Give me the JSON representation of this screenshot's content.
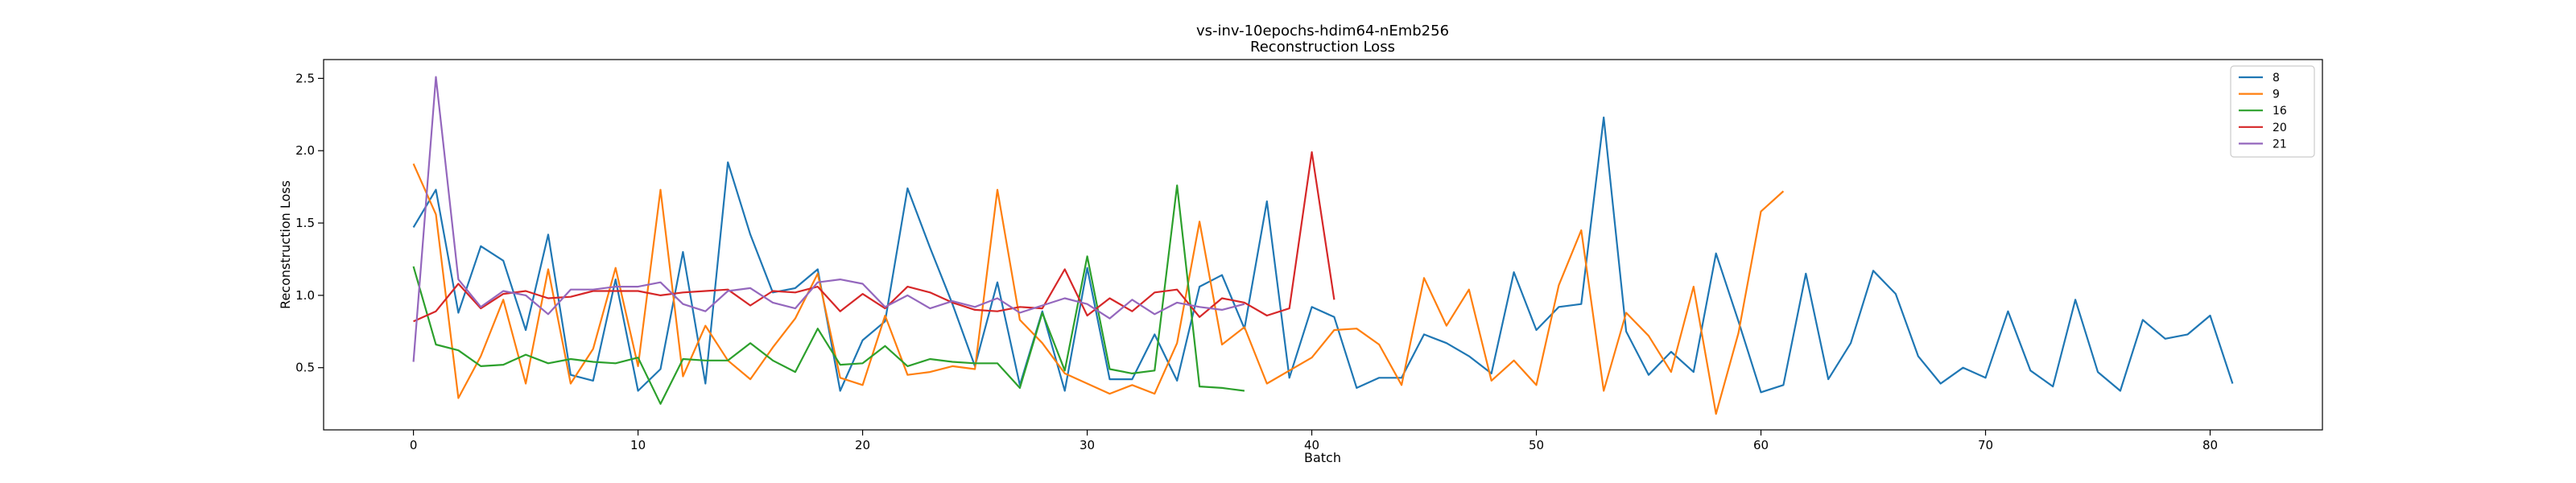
{
  "chart_data": {
    "type": "line",
    "title": "vs-inv-10epochs-hdim64-nEmb256",
    "subtitle": "Reconstruction Loss",
    "xlabel": "Batch",
    "ylabel": "Reconstruction Loss",
    "xlim": [
      -4,
      85
    ],
    "ylim": [
      0.07,
      2.63
    ],
    "xticks": [
      "0",
      "10",
      "20",
      "30",
      "40",
      "50",
      "60",
      "70",
      "80"
    ],
    "yticks": [
      "0.5",
      "1.0",
      "1.5",
      "2.0",
      "2.5"
    ],
    "grid": false,
    "legend_position": "top-right",
    "series": [
      {
        "name": "8",
        "color": "#1f77b4",
        "values": [
          1.47,
          1.73,
          0.88,
          1.34,
          1.24,
          0.76,
          1.42,
          0.45,
          0.41,
          1.11,
          0.34,
          0.49,
          1.3,
          0.39,
          1.92,
          1.42,
          1.02,
          1.05,
          1.18,
          0.34,
          0.69,
          0.82,
          1.74,
          1.33,
          0.94,
          0.51,
          1.09,
          0.38,
          0.89,
          0.34,
          1.19,
          0.42,
          0.42,
          0.73,
          0.41,
          1.06,
          1.14,
          0.77,
          1.65,
          0.43,
          0.92,
          0.85,
          0.36,
          0.43,
          0.43,
          0.73,
          0.67,
          0.58,
          0.46,
          1.16,
          0.76,
          0.92,
          0.94,
          2.23,
          0.75,
          0.45,
          0.61,
          0.47,
          1.29,
          0.82,
          0.33,
          0.38,
          1.15,
          0.42,
          0.67,
          1.17,
          1.01,
          0.58,
          0.39,
          0.5,
          0.43,
          0.89,
          0.48,
          0.37,
          0.97,
          0.47,
          0.34,
          0.83,
          0.7,
          0.73,
          0.86,
          0.39
        ]
      },
      {
        "name": "9",
        "color": "#ff7f0e",
        "values": [
          1.91,
          1.56,
          0.29,
          0.58,
          0.97,
          0.39,
          1.18,
          0.39,
          0.63,
          1.19,
          0.51,
          1.73,
          0.44,
          0.79,
          0.55,
          0.42,
          0.64,
          0.84,
          1.15,
          0.43,
          0.38,
          0.86,
          0.45,
          0.47,
          0.51,
          0.49,
          1.73,
          0.83,
          0.67,
          0.46,
          0.39,
          0.32,
          0.38,
          0.32,
          0.67,
          1.51,
          0.66,
          0.78,
          0.39,
          0.48,
          0.57,
          0.76,
          0.77,
          0.66,
          0.38,
          1.12,
          0.79,
          1.04,
          0.41,
          0.55,
          0.38,
          1.07,
          1.45,
          0.34,
          0.88,
          0.72,
          0.47,
          1.06,
          0.18,
          0.74,
          1.58,
          1.72
        ]
      },
      {
        "name": "16",
        "color": "#2ca02c",
        "values": [
          1.2,
          0.66,
          0.62,
          0.51,
          0.52,
          0.59,
          0.53,
          0.56,
          0.54,
          0.53,
          0.57,
          0.25,
          0.56,
          0.55,
          0.55,
          0.67,
          0.55,
          0.47,
          0.77,
          0.52,
          0.53,
          0.65,
          0.51,
          0.56,
          0.54,
          0.53,
          0.53,
          0.36,
          0.88,
          0.48,
          1.27,
          0.49,
          0.46,
          0.48,
          1.76,
          0.37,
          0.36,
          0.34
        ]
      },
      {
        "name": "20",
        "color": "#d62728",
        "values": [
          0.82,
          0.89,
          1.08,
          0.91,
          1.01,
          1.03,
          0.98,
          0.99,
          1.03,
          1.03,
          1.03,
          1.0,
          1.02,
          1.03,
          1.04,
          0.93,
          1.03,
          1.02,
          1.06,
          0.89,
          1.01,
          0.91,
          1.06,
          1.02,
          0.95,
          0.9,
          0.89,
          0.92,
          0.91,
          1.18,
          0.86,
          0.98,
          0.89,
          1.02,
          1.04,
          0.85,
          0.98,
          0.95,
          0.86,
          0.91,
          1.99,
          0.97
        ]
      },
      {
        "name": "21",
        "color": "#9467bd",
        "values": [
          0.54,
          2.51,
          1.11,
          0.92,
          1.03,
          1.0,
          0.87,
          1.04,
          1.04,
          1.06,
          1.06,
          1.09,
          0.94,
          0.89,
          1.03,
          1.05,
          0.95,
          0.91,
          1.09,
          1.11,
          1.08,
          0.92,
          1.0,
          0.91,
          0.96,
          0.92,
          0.98,
          0.88,
          0.93,
          0.98,
          0.94,
          0.84,
          0.97,
          0.87,
          0.95,
          0.92,
          0.9,
          0.94
        ]
      }
    ]
  }
}
